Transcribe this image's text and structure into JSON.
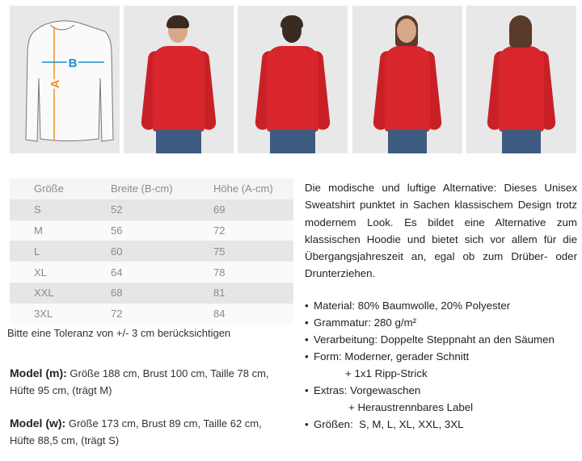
{
  "diagram": {
    "label_a": "A",
    "label_b": "B",
    "color_a": "#f0902a",
    "color_b": "#1a8fd0"
  },
  "photos": [
    "model-m-front",
    "model-m-back",
    "model-w-front",
    "model-w-back"
  ],
  "size_table": {
    "headers": [
      "Größe",
      "Breite (B-cm)",
      "Höhe (A-cm)"
    ],
    "rows": [
      [
        "S",
        "52",
        "69"
      ],
      [
        "M",
        "56",
        "72"
      ],
      [
        "L",
        "60",
        "75"
      ],
      [
        "XL",
        "64",
        "78"
      ],
      [
        "XXL",
        "68",
        "81"
      ],
      [
        "3XL",
        "72",
        "84"
      ]
    ]
  },
  "tolerance": "Bitte eine Toleranz von +/- 3 cm berücksichtigen",
  "model_m": {
    "label": "Model (m):",
    "line1": " Größe 188 cm, Brust 100 cm, Taille 78 cm,",
    "line2": "Hüfte 95 cm, (trägt M)"
  },
  "model_w": {
    "label": "Model (w):",
    "line1": " Größe 173 cm, Brust 89 cm, Taille 62 cm,",
    "line2": "Hüfte 88,5 cm, (trägt S)"
  },
  "description": "Die modische und luftige Alternative: Dieses Unisex Sweatshirt punktet in Sachen klassischem Design trotz modernem Look. Es bildet eine Alternative zum klassischen Hoodie und bietet sich vor allem für die Übergangsjahreszeit an, egal ob zum Drüber- oder Drunterziehen.",
  "features": [
    "Material: 80% Baumwolle, 20% Polyester",
    "Grammatur: 280 g/m²",
    "Verarbeitung: Doppelte Steppnaht an den Säumen",
    "Form: Moderner, gerader Schnitt",
    "+ 1x1 Ripp-Strick",
    "Extras: Vorgewaschen",
    "+ Heraustrennbares Label",
    "Größen:  S, M, L, XL, XXL, 3XL"
  ],
  "bullet": "•"
}
